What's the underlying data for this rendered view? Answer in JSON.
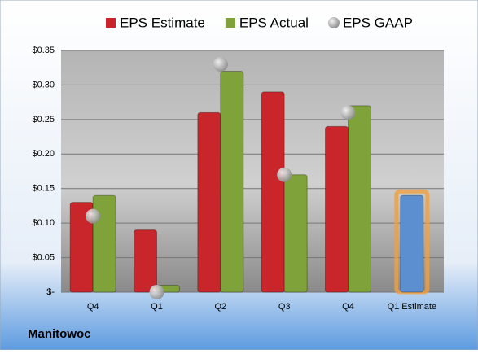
{
  "chart_data": {
    "type": "bar",
    "title": "Manitowoc",
    "categories": [
      "Q4",
      "Q1",
      "Q2",
      "Q3",
      "Q4",
      "Q1 Estimate"
    ],
    "series": [
      {
        "name": "EPS Estimate",
        "color": "#c8262a",
        "values": [
          0.13,
          0.09,
          0.26,
          0.29,
          0.24,
          0.14
        ],
        "colors": [
          "#c8262a",
          "#c8262a",
          "#c8262a",
          "#c8262a",
          "#c8262a",
          "#5b8fd0"
        ]
      },
      {
        "name": "EPS Actual",
        "color": "#7fa23a",
        "values": [
          0.14,
          0.01,
          0.32,
          0.17,
          0.27,
          null
        ]
      },
      {
        "name": "EPS GAAP",
        "color": "#a8a8a8",
        "marker": "circle",
        "values": [
          0.11,
          0.0,
          0.33,
          0.17,
          0.26,
          null
        ]
      }
    ],
    "ylim": [
      0,
      0.35
    ],
    "yticks": [
      {
        "value": 0,
        "label": "$-"
      },
      {
        "value": 0.05,
        "label": "$0.05"
      },
      {
        "value": 0.1,
        "label": "$0.10"
      },
      {
        "value": 0.15,
        "label": "$0.15"
      },
      {
        "value": 0.2,
        "label": "$0.20"
      },
      {
        "value": 0.25,
        "label": "$0.25"
      },
      {
        "value": 0.3,
        "label": "$0.30"
      },
      {
        "value": 0.35,
        "label": "$0.35"
      }
    ],
    "grid": true,
    "legend": "top"
  }
}
